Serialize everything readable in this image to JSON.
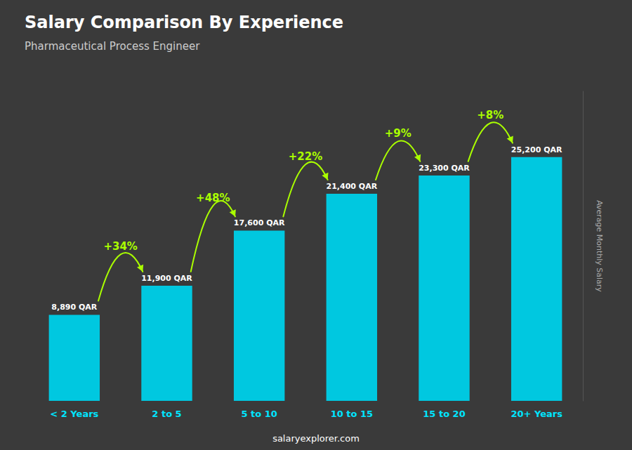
{
  "chart_data": {
    "type": "bar",
    "title": "Salary Comparison By Experience",
    "subtitle": "Pharmaceutical Process Engineer",
    "categories": [
      "< 2 Years",
      "2 to 5",
      "5 to 10",
      "10 to 15",
      "15 to 20",
      "20+ Years"
    ],
    "values": [
      8890,
      11900,
      17600,
      21400,
      23300,
      25200
    ],
    "value_labels": [
      "8,890 QAR",
      "11,900 QAR",
      "17,600 QAR",
      "21,400 QAR",
      "23,300 QAR",
      "25,200 QAR"
    ],
    "data_labels": true,
    "color": "#00c8e0",
    "annotations": [
      "+34%",
      "+48%",
      "+22%",
      "+9%",
      "+8%"
    ],
    "ylabel": "Average Monthly Salary",
    "footer": "salaryexplorer.com",
    "ylim": [
      0,
      32000
    ],
    "tick_labels": "x",
    "grid": false
  }
}
